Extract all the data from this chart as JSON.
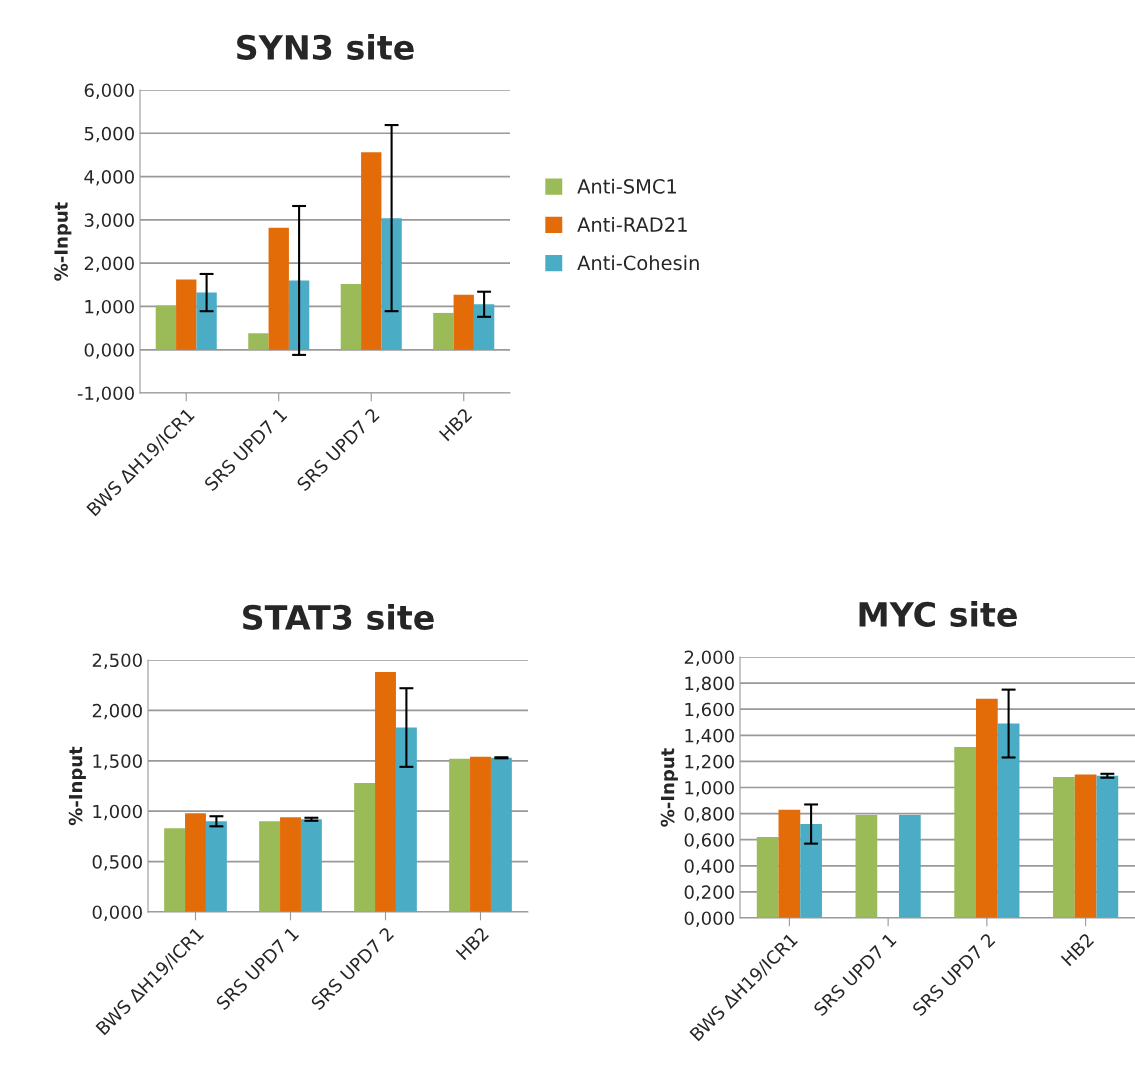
{
  "chart_data": [
    {
      "type": "bar",
      "title": "SYN3 site",
      "ylabel": "%-Input",
      "categories": [
        "BWS ΔH19/ICR1",
        "SRS UPD7 1",
        "SRS UPD7 2",
        "HB2"
      ],
      "series": [
        {
          "name": "Anti-SMC1",
          "color": "#9bbb59",
          "values": [
            1.02,
            0.38,
            1.52,
            0.85
          ]
        },
        {
          "name": "Anti-RAD21",
          "color": "#e36c09",
          "values": [
            1.62,
            2.82,
            4.56,
            1.27
          ]
        },
        {
          "name": "Anti-Cohesin",
          "color": "#4bacc6",
          "values": [
            1.32,
            1.6,
            3.04,
            1.05
          ],
          "errors": [
            0.43,
            1.72,
            2.15,
            0.29
          ]
        }
      ],
      "ylim": [
        -1,
        6
      ],
      "yticks": [
        {
          "value": -1,
          "label": "-1,000"
        },
        {
          "value": 0,
          "label": "0,000"
        },
        {
          "value": 1,
          "label": "1,000"
        },
        {
          "value": 2,
          "label": "2,000"
        },
        {
          "value": 3,
          "label": "3,000"
        },
        {
          "value": 4,
          "label": "4,000"
        },
        {
          "value": 5,
          "label": "5,000"
        },
        {
          "value": 6,
          "label": "6,000"
        }
      ],
      "grid": "y",
      "legend": "right"
    },
    {
      "type": "bar",
      "title": "STAT3 site",
      "ylabel": "%-Input",
      "categories": [
        "BWS ΔH19/ICR1",
        "SRS UPD7 1",
        "SRS UPD7 2",
        "HB2"
      ],
      "series": [
        {
          "color": "#9bbb59",
          "values": [
            0.83,
            0.9,
            1.28,
            1.52
          ]
        },
        {
          "color": "#e36c09",
          "values": [
            0.98,
            0.94,
            2.38,
            1.54
          ]
        },
        {
          "color": "#4bacc6",
          "values": [
            0.9,
            0.92,
            1.83,
            1.53
          ],
          "errors": [
            0.05,
            0.015,
            0.39,
            0.005
          ]
        }
      ],
      "ylim": [
        0,
        2.5
      ],
      "yticks": [
        {
          "value": 0,
          "label": "0,000"
        },
        {
          "value": 0.5,
          "label": "0,500"
        },
        {
          "value": 1,
          "label": "1,000"
        },
        {
          "value": 1.5,
          "label": "1,500"
        },
        {
          "value": 2,
          "label": "2,000"
        },
        {
          "value": 2.5,
          "label": "2,500"
        }
      ],
      "grid": "y"
    },
    {
      "type": "bar",
      "title": "MYC site",
      "ylabel": "%-Input",
      "categories": [
        "BWS ΔH19/ICR1",
        "SRS UPD7 1",
        "SRS UPD7 2",
        "HB2"
      ],
      "series": [
        {
          "color": "#9bbb59",
          "values": [
            0.62,
            0.79,
            1.31,
            1.08
          ]
        },
        {
          "color": "#e36c09",
          "values": [
            0.83,
            null,
            1.68,
            1.1
          ]
        },
        {
          "color": "#4bacc6",
          "values": [
            0.72,
            0.79,
            1.49,
            1.09
          ],
          "errors": [
            0.15,
            null,
            0.26,
            0.015
          ]
        }
      ],
      "ylim": [
        0,
        2
      ],
      "yticks": [
        {
          "value": 0,
          "label": "0,000"
        },
        {
          "value": 0.2,
          "label": "0,200"
        },
        {
          "value": 0.4,
          "label": "0,400"
        },
        {
          "value": 0.6,
          "label": "0,600"
        },
        {
          "value": 0.8,
          "label": "0,800"
        },
        {
          "value": 1,
          "label": "1,000"
        },
        {
          "value": 1.2,
          "label": "1,200"
        },
        {
          "value": 1.4,
          "label": "1,400"
        },
        {
          "value": 1.6,
          "label": "1,600"
        },
        {
          "value": 1.8,
          "label": "1,800"
        },
        {
          "value": 2,
          "label": "2,000"
        }
      ],
      "grid": "y"
    }
  ]
}
